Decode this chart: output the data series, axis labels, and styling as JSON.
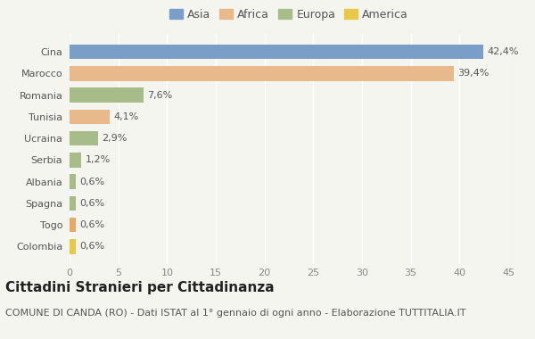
{
  "categories": [
    "Cina",
    "Marocco",
    "Romania",
    "Tunisia",
    "Ucraina",
    "Serbia",
    "Albania",
    "Spagna",
    "Togo",
    "Colombia"
  ],
  "values": [
    42.4,
    39.4,
    7.6,
    4.1,
    2.9,
    1.2,
    0.6,
    0.6,
    0.6,
    0.6
  ],
  "labels": [
    "42,4%",
    "39,4%",
    "7,6%",
    "4,1%",
    "2,9%",
    "1,2%",
    "0,6%",
    "0,6%",
    "0,6%",
    "0,6%"
  ],
  "colors": [
    "#7b9ec9",
    "#e8b98a",
    "#a8bc8a",
    "#e8b98a",
    "#a8bc8a",
    "#a8bc8a",
    "#a8bc8a",
    "#a8bc8a",
    "#e8a868",
    "#e8c84a"
  ],
  "legend": [
    {
      "label": "Asia",
      "color": "#7b9ec9"
    },
    {
      "label": "Africa",
      "color": "#e8b98a"
    },
    {
      "label": "Europa",
      "color": "#a8bc8a"
    },
    {
      "label": "America",
      "color": "#e8c84a"
    }
  ],
  "xlim": [
    0,
    45
  ],
  "xticks": [
    0,
    5,
    10,
    15,
    20,
    25,
    30,
    35,
    40,
    45
  ],
  "title": "Cittadini Stranieri per Cittadinanza",
  "subtitle": "COMUNE DI CANDA (RO) - Dati ISTAT al 1° gennaio di ogni anno - Elaborazione TUTTITALIA.IT",
  "background_color": "#f5f5f0",
  "bar_height": 0.68,
  "grid_color": "#ffffff",
  "title_fontsize": 11,
  "subtitle_fontsize": 8,
  "label_fontsize": 8,
  "tick_fontsize": 8,
  "legend_fontsize": 9
}
